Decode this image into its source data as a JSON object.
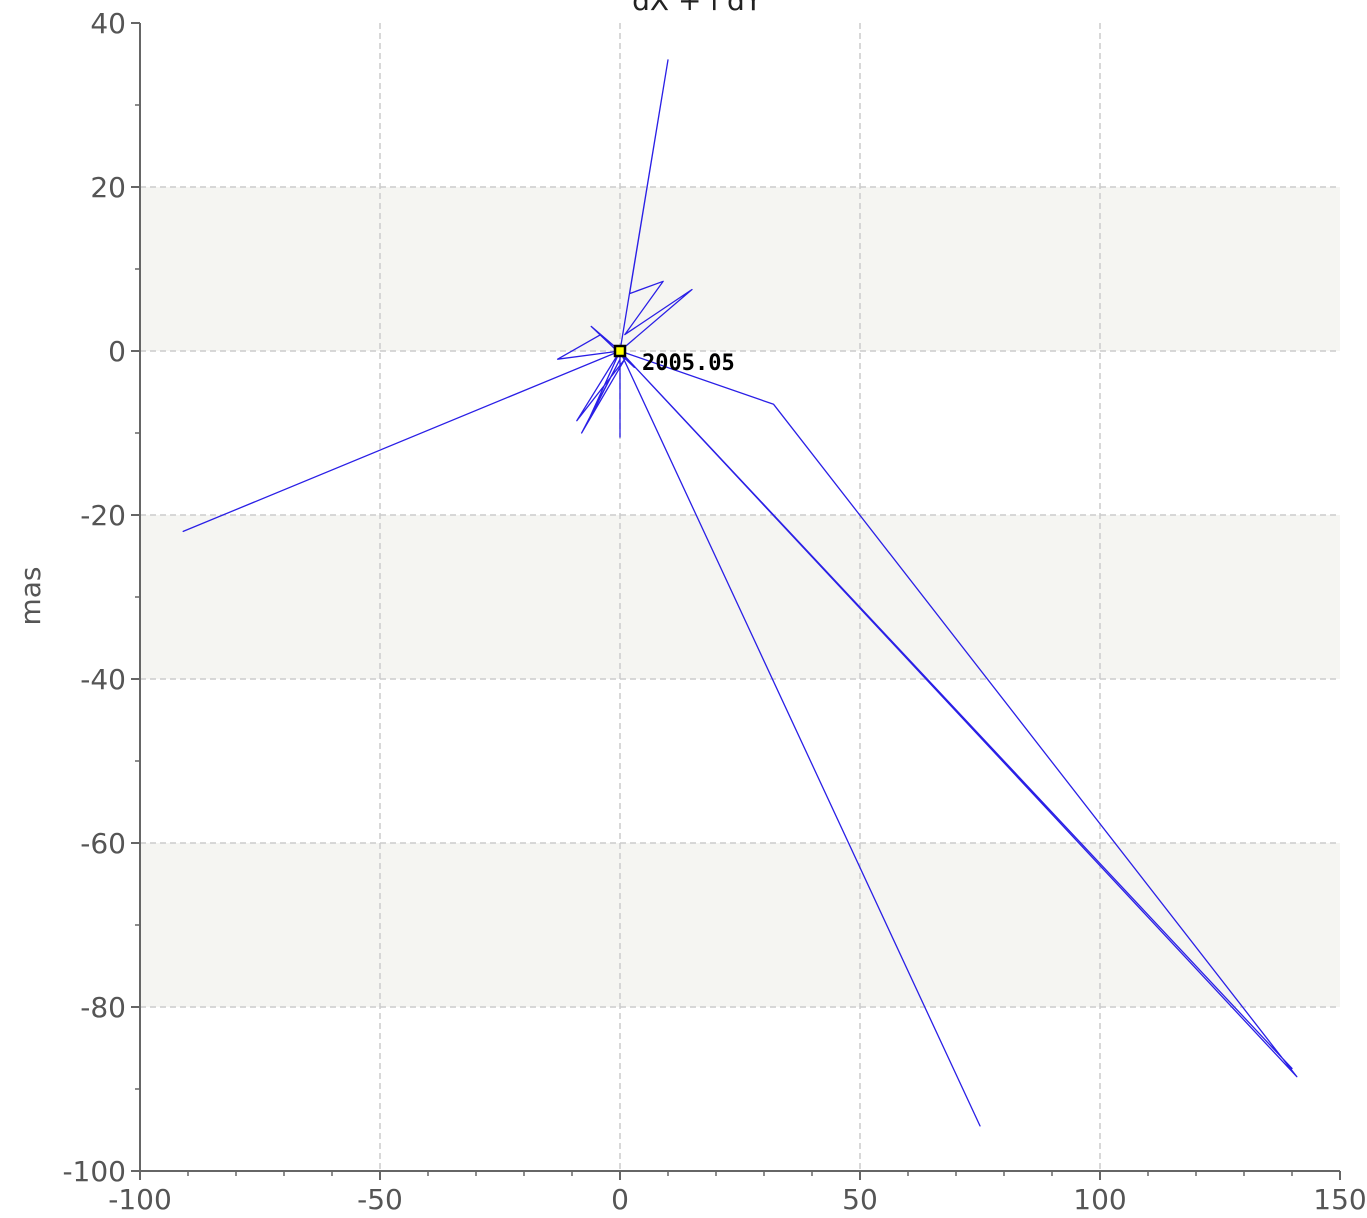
{
  "chart_data": {
    "type": "line",
    "title": "dX + i dY",
    "xlabel": "",
    "ylabel": "mas",
    "xlim": [
      -100,
      150
    ],
    "ylim": [
      -100,
      40
    ],
    "x_ticks": [
      -100,
      -50,
      0,
      50,
      100,
      150
    ],
    "y_ticks": [
      40,
      20,
      0,
      -20,
      -40,
      -60,
      -80,
      -100
    ],
    "grid": true,
    "band_color": "#f5f5f2",
    "line_color": "#2a1fe6",
    "marker": {
      "x": 0,
      "y": 0,
      "fill": "#ffff00",
      "stroke": "#000000",
      "label": "2005.05"
    },
    "series": [
      {
        "values": [
          [
            0,
            0
          ],
          [
            10,
            35.5
          ],
          [
            2,
            7
          ],
          [
            9,
            8.5
          ],
          [
            1,
            2
          ],
          [
            15,
            7.5
          ],
          [
            0,
            0
          ],
          [
            -13,
            -1
          ],
          [
            -4,
            2
          ],
          [
            0,
            0
          ],
          [
            -91,
            -22
          ],
          [
            0,
            0
          ],
          [
            -9,
            -8.5
          ],
          [
            1,
            -1
          ],
          [
            -8,
            -10
          ],
          [
            0,
            -1
          ],
          [
            -7,
            -9
          ],
          [
            0,
            0
          ],
          [
            0,
            -10.5
          ],
          [
            0,
            0
          ],
          [
            32,
            -6.5
          ],
          [
            141,
            -88.5
          ],
          [
            0,
            0
          ],
          [
            140,
            -87.5
          ],
          [
            0,
            0
          ],
          [
            75,
            -94.5
          ],
          [
            0,
            0
          ],
          [
            3,
            -2
          ],
          [
            -6,
            3
          ],
          [
            0,
            0
          ]
        ]
      }
    ]
  }
}
